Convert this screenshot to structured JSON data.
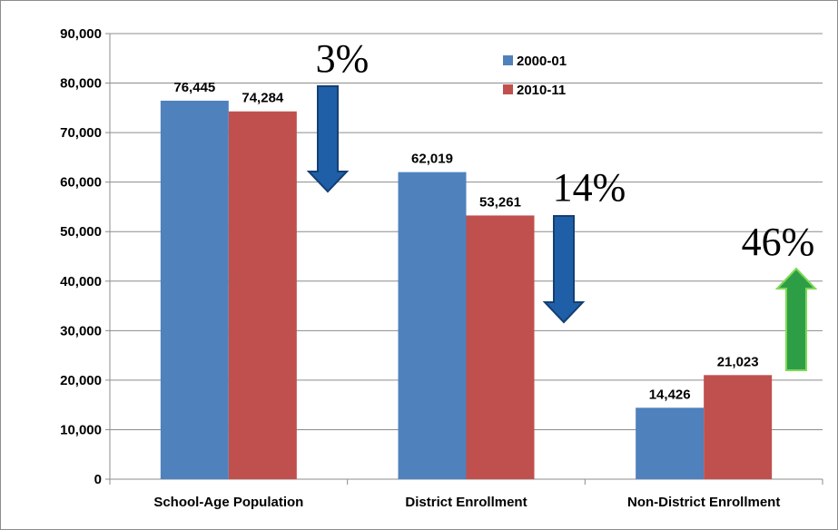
{
  "chart_data": {
    "type": "bar",
    "categories": [
      "School-Age Population",
      "District Enrollment",
      "Non-District Enrollment"
    ],
    "series": [
      {
        "name": "2000-01",
        "values": [
          76445,
          62019,
          14426
        ],
        "color": "#4f81bd",
        "labels": [
          "76,445",
          "62,019",
          "14,426"
        ]
      },
      {
        "name": "2010-11",
        "values": [
          74284,
          53261,
          21023
        ],
        "color": "#c0504d",
        "labels": [
          "74,284",
          "53,261",
          "21,023"
        ]
      }
    ],
    "ylim": [
      0,
      90000
    ],
    "yticks": [
      0,
      10000,
      20000,
      30000,
      40000,
      50000,
      60000,
      70000,
      80000,
      90000
    ],
    "ytick_labels": [
      "0",
      "10,000",
      "20,000",
      "30,000",
      "40,000",
      "50,000",
      "60,000",
      "70,000",
      "80,000",
      "90,000"
    ],
    "grid": true,
    "legend_position": "top-right",
    "annotations": [
      {
        "text": "3%",
        "direction": "down",
        "color": "#1f5fa8"
      },
      {
        "text": "14%",
        "direction": "down",
        "color": "#1f5fa8"
      },
      {
        "text": "46%",
        "direction": "up",
        "color": "#2e9e46"
      }
    ]
  }
}
